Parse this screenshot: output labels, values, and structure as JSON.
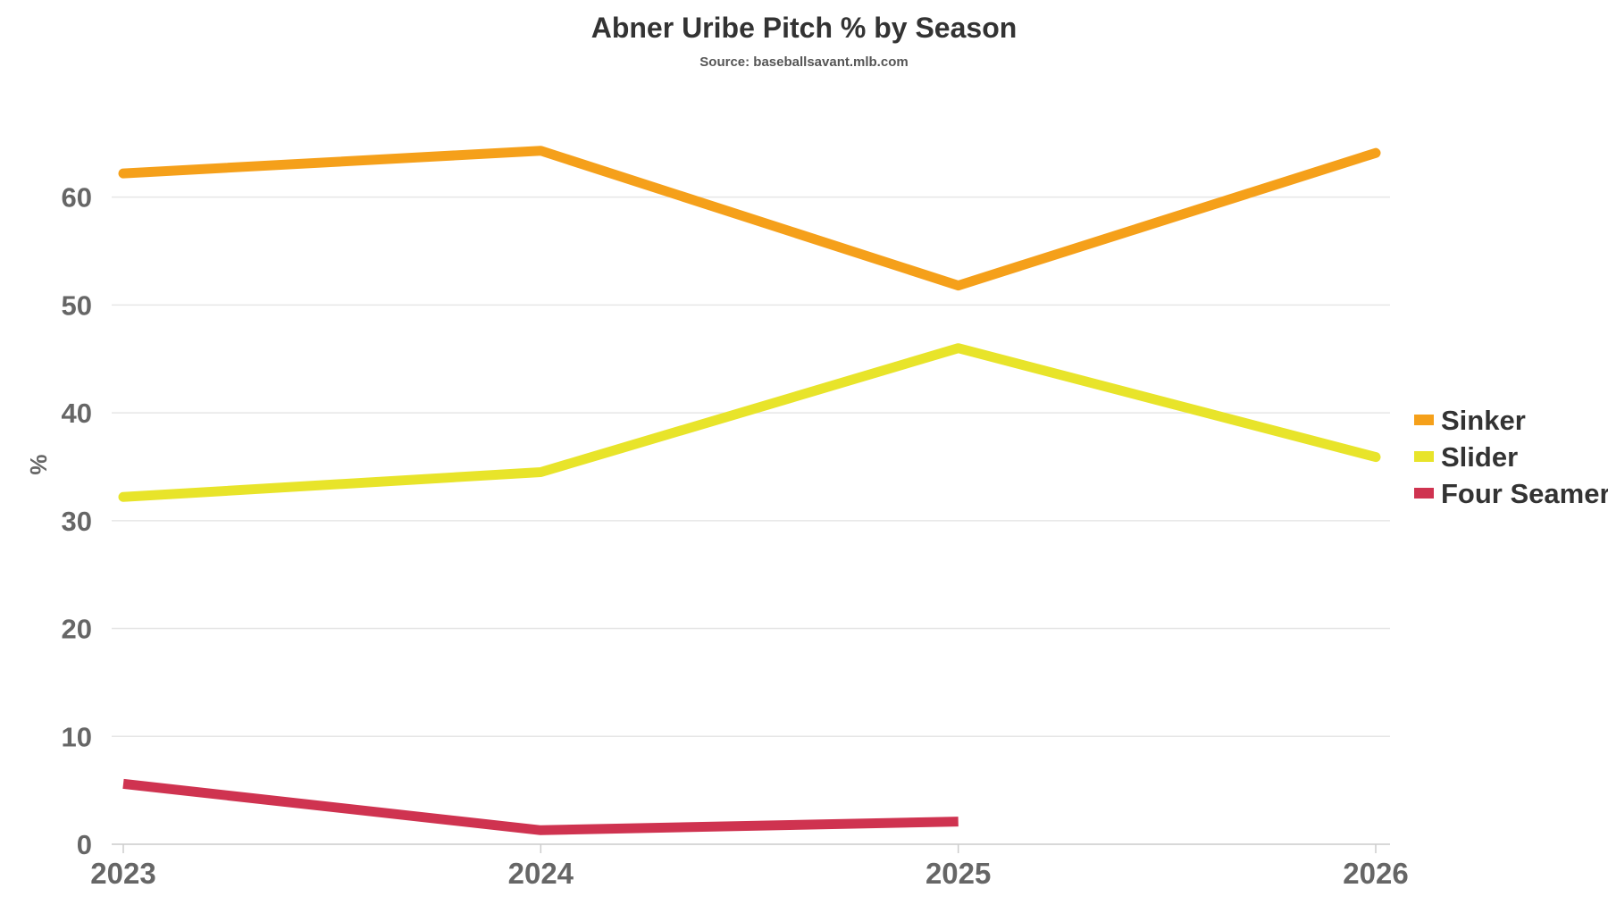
{
  "chart_data": {
    "type": "line",
    "title": "Abner Uribe Pitch % by Season",
    "subtitle": "Source: baseballsavant.mlb.com",
    "xlabel": "",
    "ylabel": "%",
    "x": [
      "2023",
      "2024",
      "2025",
      "2026"
    ],
    "y_ticks": [
      "0",
      "10",
      "20",
      "30",
      "40",
      "50",
      "60"
    ],
    "ylim": [
      0,
      69
    ],
    "grid": true,
    "legend_position": "right",
    "series": [
      {
        "name": "Sinker",
        "color": "#f5a01a",
        "values": [
          62.2,
          64.3,
          51.8,
          64.1
        ]
      },
      {
        "name": "Slider",
        "color": "#e8e42a",
        "values": [
          32.2,
          34.5,
          46.0,
          35.9
        ]
      },
      {
        "name": "Four Seamer",
        "color": "#cf3350",
        "values": [
          5.6,
          1.3,
          2.1,
          null
        ]
      }
    ]
  }
}
